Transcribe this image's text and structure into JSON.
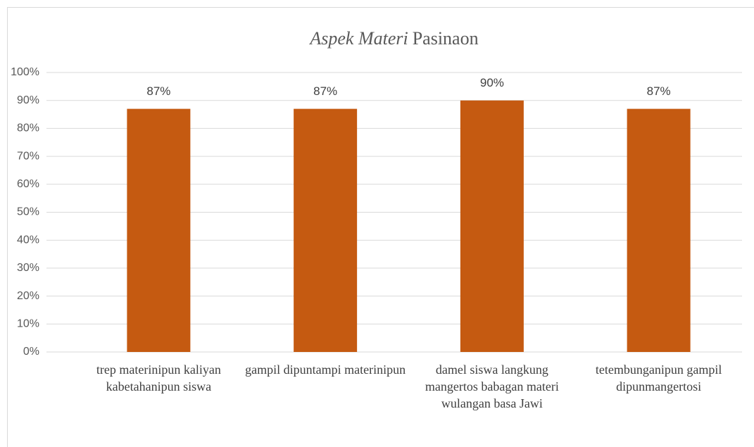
{
  "chart_data": {
    "type": "bar",
    "title": {
      "italic": "Aspek Materi",
      "regular": "Pasinaon"
    },
    "categories": [
      "trep materinipun kaliyan kabetahanipun siswa",
      "gampil dipuntampi materinipun",
      "damel siswa langkung mangertos babagan materi wulangan basa Jawi",
      "tetembunganipun gampil dipunmangertosi"
    ],
    "values": [
      87,
      87,
      90,
      87
    ],
    "value_labels": [
      "87%",
      "87%",
      "90%",
      "87%"
    ],
    "color": "#c55a11",
    "ylim": [
      0,
      100
    ],
    "yticks": [
      {
        "value": 0,
        "label": "0%"
      },
      {
        "value": 10,
        "label": "10%"
      },
      {
        "value": 20,
        "label": "20%"
      },
      {
        "value": 30,
        "label": "30%"
      },
      {
        "value": 40,
        "label": "40%"
      },
      {
        "value": 50,
        "label": "50%"
      },
      {
        "value": 60,
        "label": "60%"
      },
      {
        "value": 70,
        "label": "70%"
      },
      {
        "value": 80,
        "label": "80%"
      },
      {
        "value": 90,
        "label": "90%"
      },
      {
        "value": 100,
        "label": "100%"
      }
    ],
    "grid": true
  }
}
